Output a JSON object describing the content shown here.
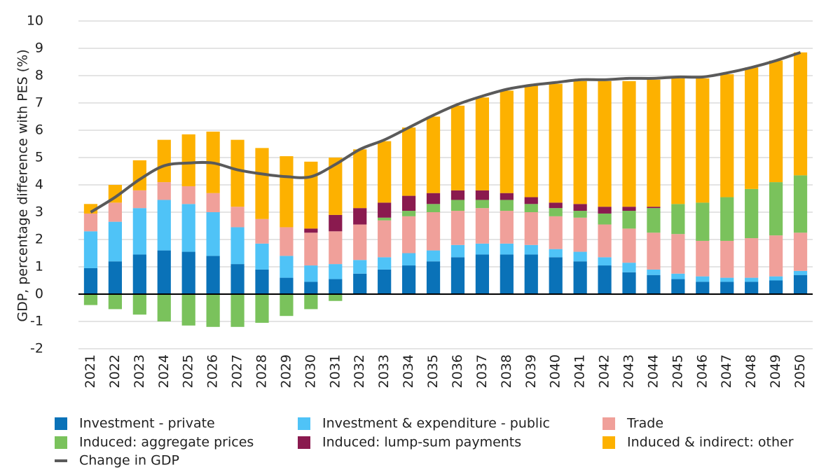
{
  "chart_data": {
    "type": "bar",
    "stacked": true,
    "y_label": "GDP, percentage difference with PES (%)",
    "categories": [
      "2021",
      "2022",
      "2023",
      "2024",
      "2025",
      "2026",
      "2027",
      "2028",
      "2029",
      "2030",
      "2031",
      "2032",
      "2033",
      "2034",
      "2035",
      "2036",
      "2037",
      "2038",
      "2039",
      "2040",
      "2041",
      "2042",
      "2043",
      "2044",
      "2045",
      "2046",
      "2047",
      "2048",
      "2049",
      "2050"
    ],
    "ylim": [
      -2,
      10
    ],
    "yticks": [
      -2,
      -1,
      0,
      1,
      2,
      3,
      4,
      5,
      6,
      7,
      8,
      9,
      10
    ],
    "grid": true,
    "series": [
      {
        "name": "Investment - private",
        "color": "#0a72b8",
        "values": [
          0.95,
          1.2,
          1.45,
          1.6,
          1.55,
          1.4,
          1.1,
          0.9,
          0.6,
          0.45,
          0.55,
          0.75,
          0.9,
          1.05,
          1.2,
          1.35,
          1.45,
          1.45,
          1.45,
          1.35,
          1.2,
          1.05,
          0.8,
          0.7,
          0.55,
          0.45,
          0.45,
          0.45,
          0.5,
          0.7
        ]
      },
      {
        "name": "Investment & expenditure - public",
        "color": "#4fc3f7",
        "values": [
          1.35,
          1.45,
          1.7,
          1.85,
          1.75,
          1.6,
          1.35,
          0.95,
          0.8,
          0.6,
          0.55,
          0.5,
          0.45,
          0.45,
          0.4,
          0.45,
          0.4,
          0.4,
          0.35,
          0.3,
          0.35,
          0.3,
          0.35,
          0.2,
          0.2,
          0.2,
          0.15,
          0.15,
          0.15,
          0.15
        ]
      },
      {
        "name": "Trade",
        "color": "#f0a09a",
        "values": [
          0.65,
          0.7,
          0.65,
          0.65,
          0.65,
          0.7,
          0.75,
          0.9,
          1.05,
          1.2,
          1.2,
          1.3,
          1.35,
          1.35,
          1.4,
          1.25,
          1.3,
          1.2,
          1.2,
          1.2,
          1.25,
          1.2,
          1.25,
          1.35,
          1.45,
          1.3,
          1.35,
          1.45,
          1.5,
          1.4
        ]
      },
      {
        "name": "Induced: aggregate prices",
        "color": "#7ac25c",
        "values": [
          -0.4,
          -0.55,
          -0.75,
          -1.0,
          -1.15,
          -1.2,
          -1.2,
          -1.05,
          -0.8,
          -0.55,
          -0.25,
          0,
          0.1,
          0.2,
          0.3,
          0.4,
          0.3,
          0.4,
          0.3,
          0.3,
          0.25,
          0.4,
          0.65,
          0.9,
          1.1,
          1.4,
          1.6,
          1.8,
          1.95,
          2.1
        ]
      },
      {
        "name": "Induced: lump-sum payments",
        "color": "#8a1a4f",
        "values": [
          0,
          0,
          0,
          0,
          0,
          0,
          0,
          0,
          0,
          0.15,
          0.6,
          0.6,
          0.55,
          0.55,
          0.4,
          0.35,
          0.35,
          0.25,
          0.25,
          0.2,
          0.25,
          0.25,
          0.15,
          0.05,
          0,
          0,
          0,
          0,
          0,
          0
        ]
      },
      {
        "name": "Induced & indirect: other",
        "color": "#fdb100",
        "values": [
          0.35,
          0.65,
          1.1,
          1.55,
          1.9,
          2.25,
          2.45,
          2.6,
          2.6,
          2.45,
          2.1,
          2.15,
          2.25,
          2.5,
          2.8,
          3.1,
          3.4,
          3.75,
          4.1,
          4.35,
          4.5,
          4.6,
          4.6,
          4.65,
          4.6,
          4.55,
          4.5,
          4.45,
          4.45,
          4.5
        ]
      }
    ],
    "line": {
      "name": "Change in GDP",
      "color": "#5a5a5a",
      "values": [
        3.0,
        3.55,
        4.2,
        4.7,
        4.8,
        4.8,
        4.55,
        4.4,
        4.3,
        4.3,
        4.75,
        5.3,
        5.65,
        6.1,
        6.55,
        6.95,
        7.25,
        7.5,
        7.65,
        7.75,
        7.85,
        7.85,
        7.9,
        7.9,
        7.95,
        7.95,
        8.1,
        8.3,
        8.55,
        8.85
      ]
    }
  }
}
